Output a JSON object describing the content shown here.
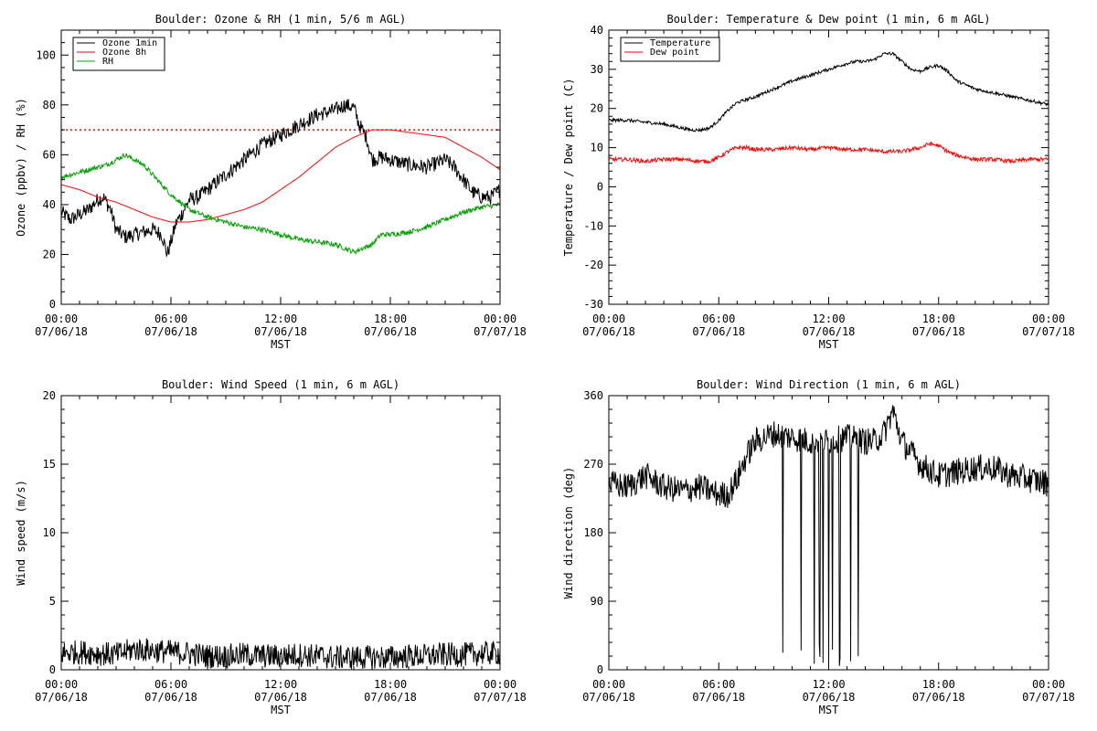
{
  "chart_data": [
    {
      "type": "line",
      "title": "Boulder: Ozone & RH (1 min, 5/6 m AGL)",
      "xlabel": "MST",
      "ylabel": "Ozone (ppbv) / RH (%)",
      "ylim": [
        0,
        110
      ],
      "yticks": [
        0,
        20,
        40,
        60,
        80,
        100
      ],
      "x_ticks_hours": [
        0,
        6,
        12,
        18,
        24
      ],
      "x_tick_labels": [
        [
          "00:00",
          "07/06/18"
        ],
        [
          "06:00",
          "07/06/18"
        ],
        [
          "12:00",
          "07/06/18"
        ],
        [
          "18:00",
          "07/06/18"
        ],
        [
          "00:00",
          "07/07/18"
        ]
      ],
      "legend": "top-left",
      "reference_line": {
        "y": 70,
        "style": "dotted",
        "color": "#ff0000"
      },
      "series": [
        {
          "name": "Ozone 1min",
          "color": "#000000",
          "noise": 3,
          "x": [
            0,
            0.5,
            1,
            1.5,
            2,
            2.3,
            2.7,
            3,
            3.5,
            4,
            4.5,
            5,
            5.5,
            5.8,
            6,
            6.3,
            6.5,
            7,
            7.5,
            8,
            9,
            10,
            11,
            12,
            13,
            14,
            15,
            15.5,
            16,
            16.3,
            16.7,
            17,
            17.5,
            18,
            19,
            20,
            21,
            21.5,
            22,
            22.5,
            23,
            23.5,
            24
          ],
          "y": [
            37,
            34,
            36,
            38,
            42,
            43,
            38,
            30,
            27,
            28,
            29,
            30,
            28,
            20,
            25,
            33,
            35,
            42,
            43,
            46,
            52,
            58,
            64,
            68,
            72,
            76,
            78,
            80,
            79,
            72,
            67,
            58,
            59,
            58,
            56,
            55,
            58,
            55,
            50,
            45,
            43,
            43,
            46
          ]
        },
        {
          "name": "Ozone 8h",
          "color": "#ff0000",
          "noise": 0,
          "x": [
            0,
            1,
            2,
            3,
            4,
            5,
            6,
            7,
            8,
            9,
            10,
            11,
            12,
            13,
            14,
            15,
            16,
            17,
            18,
            19,
            20,
            21,
            22,
            23,
            24
          ],
          "y": [
            48,
            46,
            43,
            41,
            38,
            35,
            33,
            33,
            34,
            36,
            38,
            41,
            46,
            51,
            57,
            63,
            67,
            70,
            70,
            69,
            68,
            67,
            63,
            59,
            54
          ]
        },
        {
          "name": "RH",
          "color": "#00a000",
          "noise": 1,
          "x": [
            0,
            1,
            2,
            2.5,
            3,
            3.5,
            4,
            4.5,
            5,
            6,
            7,
            8,
            9,
            10,
            11,
            12,
            13,
            14,
            15,
            16,
            17,
            17.5,
            18,
            19,
            20,
            21,
            22,
            23,
            24
          ],
          "y": [
            51,
            53,
            55,
            56,
            58,
            60,
            58,
            56,
            52,
            44,
            38,
            35,
            33,
            31,
            30,
            28,
            26,
            25,
            24,
            21,
            24,
            28,
            28,
            29,
            31,
            34,
            37,
            39,
            40
          ]
        }
      ]
    },
    {
      "type": "line",
      "title": "Boulder: Temperature & Dew point (1 min, 6 m AGL)",
      "xlabel": "MST",
      "ylabel": "Temperature / Dew point (C)",
      "ylim": [
        -30,
        40
      ],
      "yticks": [
        -30,
        -20,
        -10,
        0,
        10,
        20,
        30,
        40
      ],
      "x_ticks_hours": [
        0,
        6,
        12,
        18,
        24
      ],
      "x_tick_labels": [
        [
          "00:00",
          "07/06/18"
        ],
        [
          "06:00",
          "07/06/18"
        ],
        [
          "12:00",
          "07/06/18"
        ],
        [
          "18:00",
          "07/06/18"
        ],
        [
          "00:00",
          "07/07/18"
        ]
      ],
      "legend": "top-left",
      "series": [
        {
          "name": "Temperature",
          "color": "#000000",
          "noise": 0.4,
          "x": [
            0,
            1,
            2,
            3,
            4,
            4.5,
            5,
            5.5,
            6,
            6.5,
            7,
            8,
            9,
            10,
            11,
            12,
            13,
            13.5,
            14,
            14.5,
            15,
            15.5,
            16,
            16.5,
            17,
            17.5,
            18,
            18.5,
            19,
            20,
            21,
            22,
            23,
            24
          ],
          "y": [
            17,
            17,
            16.5,
            16,
            15,
            14.5,
            14.5,
            15,
            17,
            19.5,
            21.5,
            23,
            25,
            27,
            28.5,
            30,
            31.5,
            32,
            32,
            32.5,
            34,
            34,
            32,
            30,
            29.5,
            30.5,
            31,
            29.5,
            27,
            25,
            24,
            23,
            22,
            21
          ]
        },
        {
          "name": "Dew point",
          "color": "#ff0000",
          "noise": 0.5,
          "x": [
            0,
            1,
            2,
            3,
            4,
            5,
            5.5,
            6,
            6.5,
            7,
            7.5,
            8,
            9,
            10,
            11,
            12,
            13,
            14,
            15,
            16,
            17,
            17.5,
            18,
            18.5,
            19,
            20,
            21,
            22,
            23,
            24
          ],
          "y": [
            7,
            7,
            6.5,
            7,
            7,
            6.5,
            6.5,
            7.5,
            9,
            10,
            10,
            9.5,
            9.5,
            10,
            9.5,
            10,
            9.5,
            9.5,
            9,
            9,
            10,
            11,
            10.5,
            9,
            8,
            7,
            7,
            6.5,
            7,
            7
          ]
        }
      ]
    },
    {
      "type": "line",
      "title": "Boulder: Wind Speed (1 min, 6 m AGL)",
      "xlabel": "MST",
      "ylabel": "Wind speed (m/s)",
      "ylim": [
        0,
        20
      ],
      "yticks": [
        0,
        5,
        10,
        15,
        20
      ],
      "x_ticks_hours": [
        0,
        6,
        12,
        18,
        24
      ],
      "x_tick_labels": [
        [
          "00:00",
          "07/06/18"
        ],
        [
          "06:00",
          "07/06/18"
        ],
        [
          "12:00",
          "07/06/18"
        ],
        [
          "18:00",
          "07/06/18"
        ],
        [
          "00:00",
          "07/07/18"
        ]
      ],
      "series": [
        {
          "color": "#000000",
          "noise": 0.9,
          "x": [
            0,
            1,
            2,
            3,
            4,
            5,
            6,
            7,
            8,
            9,
            10,
            11,
            12,
            13,
            14,
            15,
            16,
            17,
            18,
            19,
            20,
            21,
            22,
            23,
            24
          ],
          "y": [
            1.2,
            1.3,
            1.2,
            1.1,
            1.5,
            1.4,
            1.3,
            1.2,
            1.0,
            1.0,
            1.1,
            1.0,
            1.0,
            1.1,
            1.0,
            0.9,
            0.9,
            0.9,
            0.9,
            1.0,
            1.0,
            1.1,
            1.1,
            1.2,
            1.2
          ]
        }
      ]
    },
    {
      "type": "line",
      "title": "Boulder: Wind Direction (1 min, 6 m AGL)",
      "xlabel": "MST",
      "ylabel": "Wind direction (deg)",
      "ylim": [
        0,
        360
      ],
      "yticks": [
        0,
        90,
        180,
        270,
        360
      ],
      "x_ticks_hours": [
        0,
        6,
        12,
        18,
        24
      ],
      "x_tick_labels": [
        [
          "00:00",
          "07/06/18"
        ],
        [
          "06:00",
          "07/06/18"
        ],
        [
          "12:00",
          "07/06/18"
        ],
        [
          "18:00",
          "07/06/18"
        ],
        [
          "00:00",
          "07/07/18"
        ]
      ],
      "series": [
        {
          "color": "#000000",
          "noise": 18,
          "x": [
            0,
            1,
            2,
            3,
            4,
            5,
            6,
            6.5,
            7,
            7.5,
            8,
            9,
            10,
            11,
            12,
            13,
            14,
            14.5,
            15,
            15.5,
            16,
            17,
            18,
            19,
            20,
            21,
            22,
            23,
            24
          ],
          "y": [
            245,
            240,
            255,
            240,
            235,
            240,
            230,
            230,
            250,
            280,
            300,
            310,
            305,
            300,
            300,
            305,
            300,
            300,
            310,
            340,
            300,
            270,
            255,
            260,
            265,
            265,
            255,
            250,
            245
          ],
          "drops": [
            9.5,
            10.5,
            11.2,
            11.5,
            11.7,
            12.0,
            12.2,
            12.6,
            13.2,
            13.6
          ]
        }
      ]
    }
  ]
}
